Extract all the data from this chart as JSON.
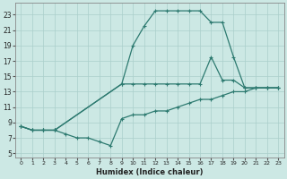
{
  "title": "",
  "xlabel": "Humidex (Indice chaleur)",
  "bg_color": "#cce8e4",
  "grid_color": "#aacfcb",
  "line_color": "#2d7a70",
  "xlim": [
    -0.5,
    23.5
  ],
  "ylim": [
    4.5,
    24.5
  ],
  "xticks": [
    0,
    1,
    2,
    3,
    4,
    5,
    6,
    7,
    8,
    9,
    10,
    11,
    12,
    13,
    14,
    15,
    16,
    17,
    18,
    19,
    20,
    21,
    22,
    23
  ],
  "yticks": [
    5,
    7,
    9,
    11,
    13,
    15,
    17,
    19,
    21,
    23
  ],
  "line1_x": [
    0,
    1,
    2,
    3,
    4,
    5,
    6,
    7,
    8,
    9,
    10,
    11,
    12,
    13,
    14,
    15,
    16,
    17,
    18,
    19,
    20,
    21,
    22,
    23
  ],
  "line1_y": [
    8.5,
    8.0,
    8.0,
    8.0,
    7.5,
    7.0,
    7.0,
    6.5,
    6.0,
    9.5,
    10.0,
    10.0,
    10.5,
    10.5,
    11.0,
    11.5,
    12.0,
    12.0,
    12.5,
    13.0,
    13.0,
    13.5,
    13.5,
    13.5
  ],
  "line2_x": [
    0,
    1,
    2,
    3,
    9,
    10,
    11,
    12,
    13,
    14,
    15,
    16,
    17,
    18,
    19,
    20,
    21,
    22,
    23
  ],
  "line2_y": [
    8.5,
    8.0,
    8.0,
    8.0,
    14.0,
    19.0,
    21.5,
    23.5,
    23.5,
    23.5,
    23.5,
    23.5,
    22.0,
    22.0,
    17.5,
    13.5,
    13.5,
    13.5,
    13.5
  ],
  "line3_x": [
    0,
    1,
    2,
    3,
    9,
    10,
    11,
    12,
    13,
    14,
    15,
    16,
    17,
    18,
    19,
    20,
    21,
    22,
    23
  ],
  "line3_y": [
    8.5,
    8.0,
    8.0,
    8.0,
    14.0,
    14.0,
    14.0,
    14.0,
    14.0,
    14.0,
    14.0,
    14.0,
    17.5,
    14.5,
    14.5,
    13.5,
    13.5,
    13.5,
    13.5
  ]
}
